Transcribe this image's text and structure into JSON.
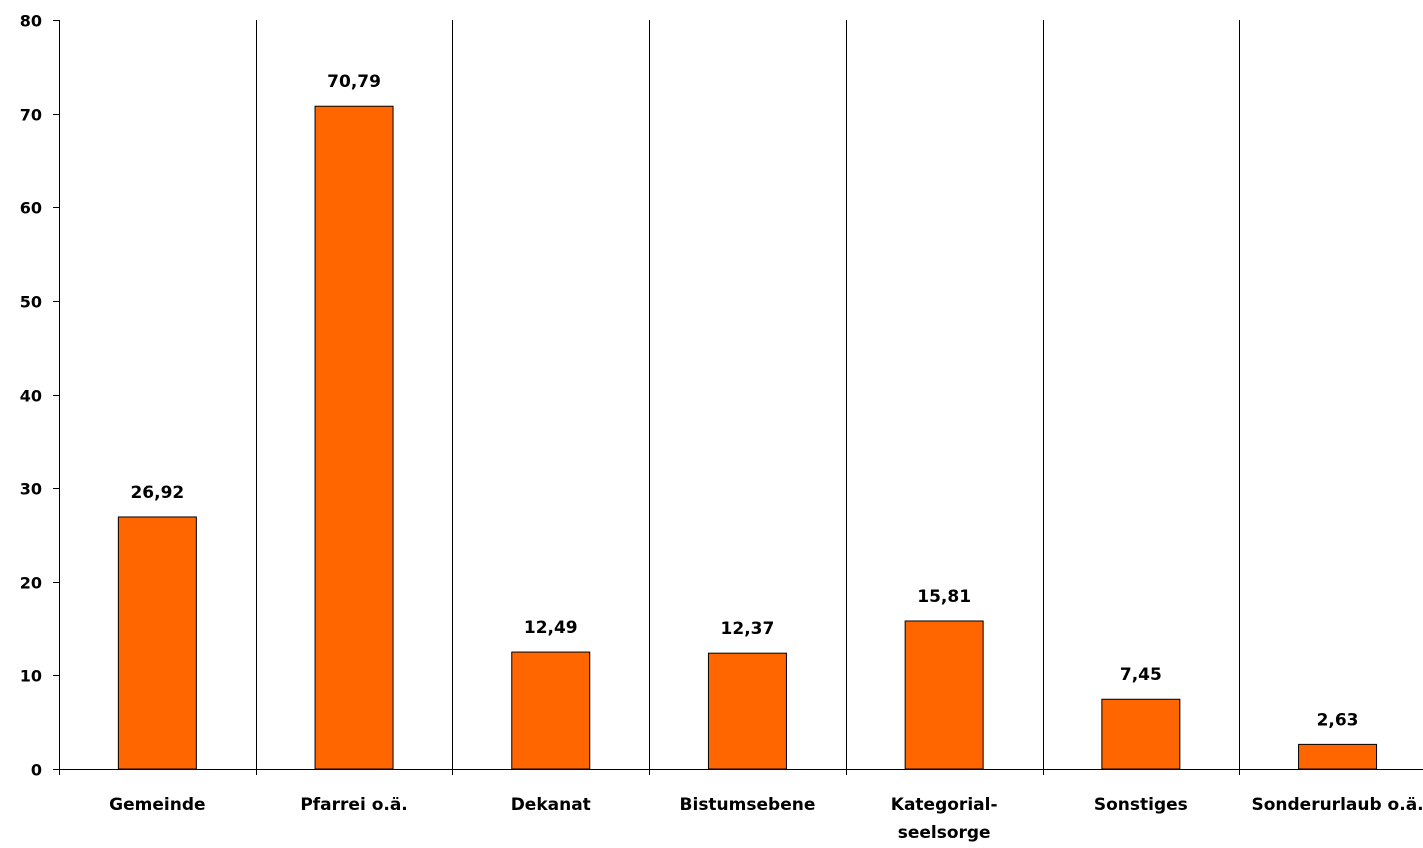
{
  "chart_data": {
    "type": "bar",
    "title": "",
    "xlabel": "",
    "ylabel": "",
    "categories": [
      "Gemeinde",
      "Pfarrei o.ä.",
      "Dekanat",
      "Bistumsebene",
      "Kategorial-\nseelsorge",
      "Sonstiges",
      "Sonderurlaub o.ä."
    ],
    "values": [
      26.92,
      70.79,
      12.49,
      12.37,
      15.81,
      7.45,
      2.63
    ],
    "data_labels": [
      "26,92",
      "70,79",
      "12,49",
      "12,37",
      "15,81",
      "7,45",
      "2,63"
    ],
    "ylim": [
      0,
      80
    ],
    "yticks": [
      0,
      10,
      20,
      30,
      40,
      50,
      60,
      70,
      80
    ],
    "grid": "vertical category separators",
    "legend": "none",
    "bar_color": "#ff6600",
    "bar_edge_color": "#000000"
  }
}
